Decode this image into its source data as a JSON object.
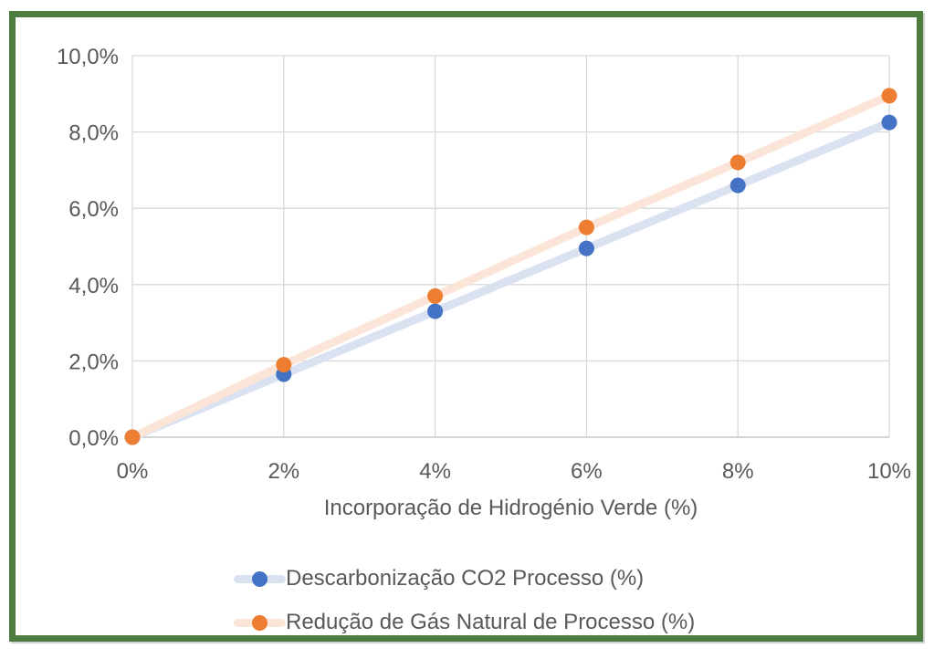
{
  "colors": {
    "frame_border": "#4C7D3E",
    "gridline": "#D9D9D9",
    "axis_line": "#BFBFBF",
    "text": "#595959",
    "series1_marker": "#4472C4",
    "series1_line": "#DAE2F2",
    "series2_marker": "#ED7D31",
    "series2_line": "#FBE5D8"
  },
  "chart_data": {
    "type": "line",
    "title": "",
    "xlabel": "Incorporação de Hidrogénio Verde (%)",
    "ylabel": "",
    "x": [
      0,
      2,
      4,
      6,
      8,
      10
    ],
    "xlim": [
      0,
      10
    ],
    "ylim": [
      0,
      10
    ],
    "x_tick_labels": [
      "0%",
      "2%",
      "4%",
      "6%",
      "8%",
      "10%"
    ],
    "y_tick_labels": [
      "0,0%",
      "2,0%",
      "4,0%",
      "6,0%",
      "8,0%",
      "10,0%"
    ],
    "grid": true,
    "legend_position": "bottom-left",
    "series": [
      {
        "name": "Descarbonização CO2 Processo (%)",
        "values": [
          0.0,
          1.65,
          3.3,
          4.95,
          6.6,
          8.25
        ],
        "marker_color": "#4472C4",
        "line_color": "#DAE2F2"
      },
      {
        "name": "Redução de Gás Natural de Processo (%)",
        "values": [
          0.0,
          1.9,
          3.7,
          5.5,
          7.2,
          8.95
        ],
        "marker_color": "#ED7D31",
        "line_color": "#FBE5D8"
      }
    ]
  }
}
